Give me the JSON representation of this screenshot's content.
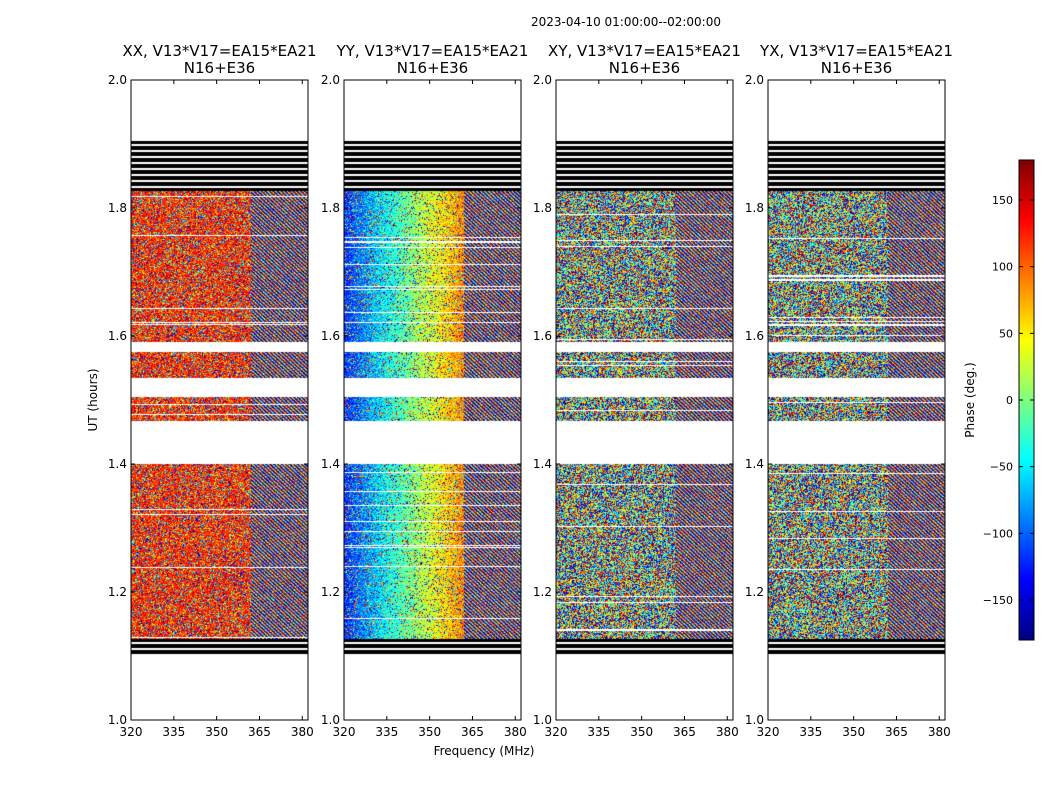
{
  "chart_data": {
    "type": "heatmap",
    "suptitle": "2023-04-10  01:00:00--02:00:00",
    "xlabel": "Frequency (MHz)",
    "ylabel": "UT (hours)",
    "xlim": [
      320,
      382
    ],
    "ylim": [
      1.0,
      2.0
    ],
    "xticks": [
      320,
      335,
      350,
      365,
      380
    ],
    "yticks": [
      1.0,
      1.2,
      1.4,
      1.6,
      1.8,
      2.0
    ],
    "ytick_labels": [
      "1.0",
      "1.2",
      "1.4",
      "1.6",
      "1.8",
      "2.0"
    ],
    "colorbar": {
      "label": "Phase (deg.)",
      "vmin": -180,
      "vmax": 180,
      "ticks": [
        -150,
        -100,
        -50,
        0,
        50,
        100,
        150
      ],
      "tick_labels": [
        "−150",
        "−100",
        "−50",
        "0",
        "50",
        "100",
        "150"
      ],
      "colormap": [
        "#00007f",
        "#0000ff",
        "#007fff",
        "#00ffff",
        "#7fff7f",
        "#ffff00",
        "#ff7f00",
        "#ff0000",
        "#7f0000"
      ]
    },
    "data_time_ranges": [
      [
        1.126,
        1.26
      ],
      [
        1.26,
        1.375
      ],
      [
        1.375,
        1.4
      ],
      [
        1.467,
        1.505
      ],
      [
        1.535,
        1.575
      ],
      [
        1.59,
        1.78
      ],
      [
        1.78,
        1.905
      ]
    ],
    "flagged_time_ranges": [
      [
        1.1,
        1.126
      ],
      [
        1.826,
        1.905
      ]
    ],
    "panels": [
      {
        "id": "xx",
        "pol": "XX",
        "title_line1": "XX, V13*V17=EA15*EA21",
        "title_line2": "N16+E36",
        "mean_phase_deg": 120,
        "slope_deg_per_mhz": 0,
        "coherence": 0.6
      },
      {
        "id": "yy",
        "pol": "YY",
        "title_line1": "YY, V13*V17=EA15*EA21",
        "title_line2": "N16+E36",
        "mean_phase_deg": -120,
        "slope_deg_per_mhz": 5,
        "coherence": 0.75
      },
      {
        "id": "xy",
        "pol": "XY",
        "title_line1": "XY, V13*V17=EA15*EA21",
        "title_line2": "N16+E36",
        "mean_phase_deg": 0,
        "slope_deg_per_mhz": 0,
        "coherence": 0.05
      },
      {
        "id": "yx",
        "pol": "YX",
        "title_line1": "YX, V13*V17=EA15*EA21",
        "title_line2": "N16+E36",
        "mean_phase_deg": 0,
        "slope_deg_per_mhz": 0,
        "coherence": 0.05
      }
    ]
  }
}
